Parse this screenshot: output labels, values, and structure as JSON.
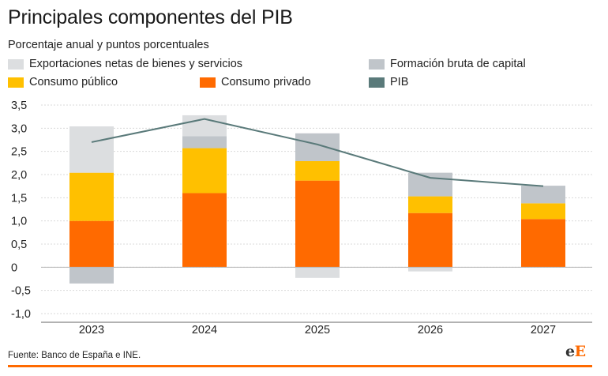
{
  "title": "Principales componentes del PIB",
  "subtitle": "Porcentaje anual y puntos porcentuales",
  "legend": [
    {
      "label": "Exportaciones netas de bienes y servicios",
      "color": "#dcdee0"
    },
    {
      "label": "Formación bruta de capital",
      "color": "#c0c5ca"
    },
    {
      "label": "Consumo público",
      "color": "#ffc000"
    },
    {
      "label": "Consumo privado",
      "color": "#ff6a00"
    },
    {
      "label": "PIB",
      "color": "#5a7a7a"
    }
  ],
  "source": "Fuente: Banco de España e INE.",
  "logo": {
    "part1": "e",
    "part2": "E"
  },
  "chart_data": {
    "type": "bar",
    "stacked": true,
    "categories": [
      "2023",
      "2024",
      "2025",
      "2026",
      "2027"
    ],
    "series": [
      {
        "name": "Consumo privado",
        "color": "#ff6a00",
        "values": [
          1.0,
          1.6,
          1.87,
          1.17,
          1.04
        ]
      },
      {
        "name": "Consumo público",
        "color": "#ffc000",
        "values": [
          1.04,
          0.97,
          0.42,
          0.36,
          0.34
        ]
      },
      {
        "name": "Formación bruta de capital",
        "color": "#c0c5ca",
        "values": [
          -0.35,
          0.26,
          0.6,
          0.51,
          0.38
        ]
      },
      {
        "name": "Exportaciones netas de bienes y servicios",
        "color": "#dcdee0",
        "values": [
          1.0,
          0.45,
          -0.23,
          -0.09,
          0.0
        ]
      }
    ],
    "line": {
      "name": "PIB",
      "color": "#5a7a7a",
      "values": [
        2.7,
        3.2,
        2.65,
        1.93,
        1.75
      ]
    },
    "yticks": [
      "3,5",
      "3,0",
      "2,5",
      "2,0",
      "1,5",
      "1,0",
      "0,5",
      "0",
      "-0,5",
      "-1,0"
    ],
    "ytick_values": [
      3.5,
      3.0,
      2.5,
      2.0,
      1.5,
      1.0,
      0.5,
      0,
      -0.5,
      -1.0
    ],
    "ylim": [
      -1.0,
      3.5
    ],
    "grid": true
  }
}
